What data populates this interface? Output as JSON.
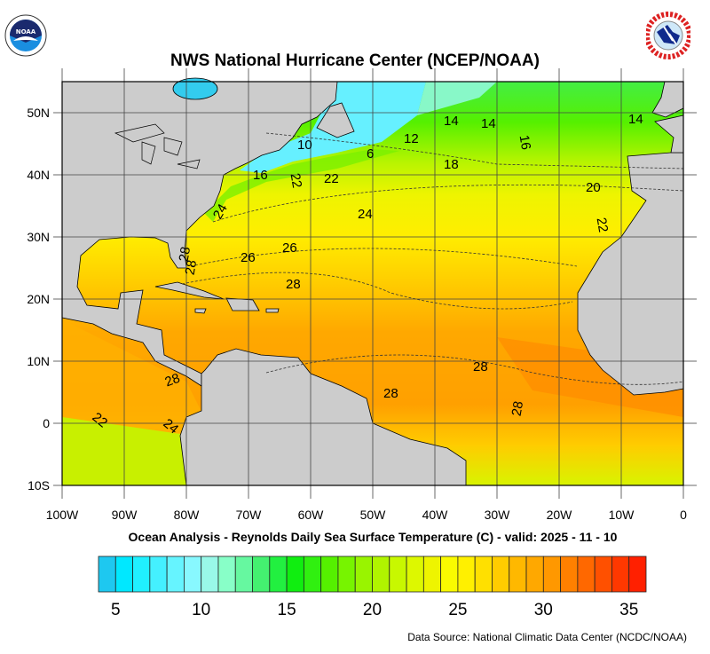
{
  "title": "NWS National Hurricane Center (NCEP/NOAA)",
  "subtitle": "Ocean Analysis - Reynolds Daily Sea Surface Temperature (C) - valid: 2025 - 11 - 10",
  "source": "Data Source: National Climatic Data Center (NCDC/NOAA)",
  "logos": {
    "left": "NOAA",
    "right": "NATIONAL WEATHER SERVICE"
  },
  "map": {
    "lon_range": [
      -100,
      0
    ],
    "lat_range": [
      -10,
      55
    ],
    "lon_labels": [
      "100W",
      "90W",
      "80W",
      "70W",
      "60W",
      "50W",
      "40W",
      "30W",
      "20W",
      "10W",
      "0"
    ],
    "lat_labels": [
      "50N",
      "40N",
      "30N",
      "20N",
      "10N",
      "0",
      "10S"
    ],
    "land_color": "#cccccc",
    "contour_labels": [
      "14",
      "14",
      "14",
      "16",
      "12",
      "10",
      "6",
      "18",
      "16",
      "22",
      "22",
      "20",
      "24",
      "24",
      "22",
      "26",
      "26",
      "28",
      "28",
      "28",
      "28",
      "28",
      "28",
      "28",
      "22",
      "24"
    ]
  },
  "colorbar": {
    "unit": "C",
    "tick_labels": [
      "5",
      "10",
      "15",
      "20",
      "25",
      "30",
      "35"
    ],
    "colors": [
      "#1ec8f0",
      "#00e8ff",
      "#20f0ff",
      "#44f0ff",
      "#66f4ff",
      "#88f8ff",
      "#99f8e8",
      "#88ffc8",
      "#66f8a0",
      "#44f070",
      "#22f040",
      "#10ee10",
      "#30f010",
      "#55f000",
      "#77f400",
      "#99f400",
      "#b0f400",
      "#c8f800",
      "#ddf800",
      "#eef400",
      "#fafa00",
      "#fff000",
      "#ffe000",
      "#ffcc00",
      "#ffb800",
      "#ffa800",
      "#ff9800",
      "#ff8000",
      "#ff6800",
      "#ff5000",
      "#ff3800",
      "#ff2000"
    ]
  }
}
